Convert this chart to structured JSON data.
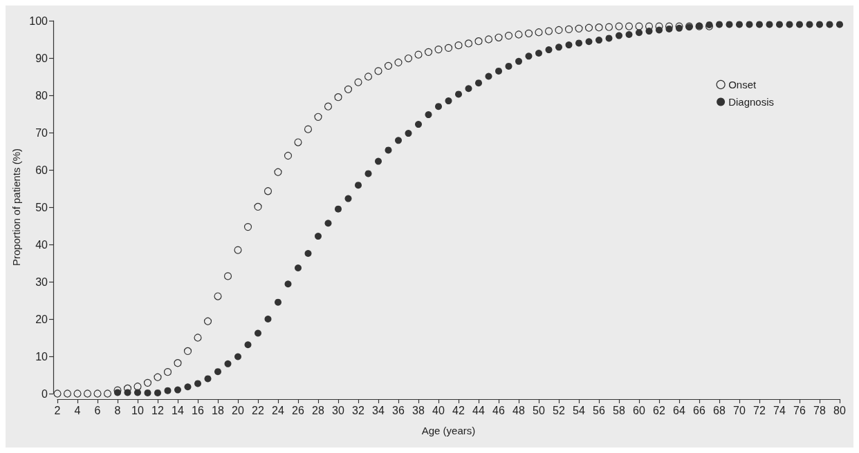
{
  "chart_data": {
    "type": "scatter",
    "xlabel": "Age (years)",
    "ylabel": "Proportion of patients (%)",
    "x": [
      2,
      3,
      4,
      5,
      6,
      7,
      8,
      9,
      10,
      11,
      12,
      13,
      14,
      15,
      16,
      17,
      18,
      19,
      20,
      21,
      22,
      23,
      24,
      25,
      26,
      27,
      28,
      29,
      30,
      31,
      32,
      33,
      34,
      35,
      36,
      37,
      38,
      39,
      40,
      41,
      42,
      43,
      44,
      45,
      46,
      47,
      48,
      49,
      50,
      51,
      52,
      53,
      54,
      55,
      56,
      57,
      58,
      59,
      60,
      61,
      62,
      63,
      64,
      65,
      66,
      67,
      68,
      69,
      70,
      71,
      72,
      73,
      74,
      75,
      76,
      77,
      78,
      79,
      80
    ],
    "series": [
      {
        "name": "Onset",
        "color": "#333333",
        "values": [
          0,
          0,
          0,
          0,
          0,
          0,
          0.9,
          1.4,
          1.9,
          2.9,
          4.4,
          5.8,
          8.2,
          11.4,
          15,
          19.4,
          26.1,
          31.5,
          38.5,
          44.7,
          50.1,
          54.3,
          59.4,
          63.8,
          67.4,
          70.9,
          74.2,
          77,
          79.5,
          81.6,
          83.5,
          85,
          86.5,
          87.9,
          88.8,
          89.9,
          90.9,
          91.6,
          92.3,
          92.7,
          93.4,
          93.9,
          94.5,
          95,
          95.5,
          96,
          96.3,
          96.6,
          96.9,
          97.2,
          97.5,
          97.7,
          97.9,
          98.1,
          98.2,
          98.3,
          98.5,
          98.5,
          98.5,
          98.5,
          98.5,
          98.5,
          98.5,
          98.5,
          98.5,
          98.5,
          null,
          null,
          null,
          null,
          null,
          null,
          null,
          null,
          null,
          null,
          null,
          null,
          null
        ]
      },
      {
        "name": "Diagnosis",
        "color": "#333333",
        "values": [
          null,
          null,
          null,
          null,
          null,
          null,
          0.3,
          0.3,
          0.3,
          0.2,
          0.2,
          0.8,
          1,
          1.8,
          2.7,
          4,
          5.9,
          8,
          9.9,
          13.1,
          16.2,
          20,
          24.5,
          29.4,
          33.7,
          37.6,
          42.2,
          45.7,
          49.5,
          52.3,
          55.9,
          59,
          62.3,
          65.3,
          67.9,
          69.8,
          72.2,
          74.8,
          77,
          78.5,
          80.3,
          81.8,
          83.3,
          85.1,
          86.5,
          87.8,
          89.1,
          90.5,
          91.3,
          92.2,
          92.9,
          93.5,
          94,
          94.4,
          94.8,
          95.3,
          96,
          96.3,
          96.8,
          97.2,
          97.5,
          97.8,
          98,
          98.3,
          98.6,
          98.9,
          99,
          99,
          99,
          99,
          99,
          99,
          99,
          99,
          99,
          99,
          99,
          99,
          99
        ]
      }
    ],
    "xlim": [
      2,
      80
    ],
    "xticks": [
      2,
      4,
      6,
      8,
      10,
      12,
      14,
      16,
      18,
      20,
      22,
      24,
      26,
      28,
      30,
      32,
      34,
      36,
      38,
      40,
      42,
      44,
      46,
      48,
      50,
      52,
      54,
      56,
      58,
      60,
      62,
      64,
      66,
      68,
      70,
      72,
      74,
      76,
      78,
      80
    ],
    "ylim": [
      0,
      100
    ],
    "yticks": [
      0,
      10,
      20,
      30,
      40,
      50,
      60,
      70,
      80,
      90,
      100
    ],
    "grid": false,
    "legend": "top right",
    "marker": "circle"
  }
}
